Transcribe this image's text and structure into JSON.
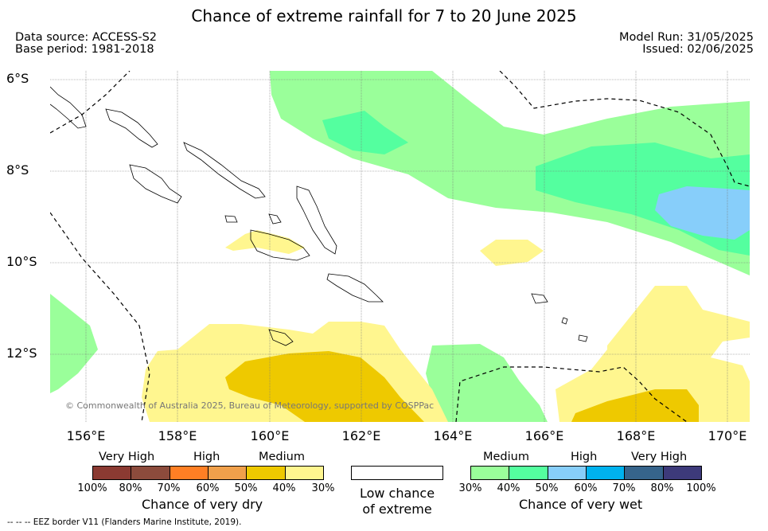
{
  "title": "Chance of extreme rainfall for 7 to 20 June 2025",
  "meta": {
    "data_source": "Data source: ACCESS-S2",
    "base_period": "Base period: 1981-2018",
    "model_run": "Model Run: 31/05/2025",
    "issued": "Issued: 02/06/2025"
  },
  "map": {
    "lat_ticks": [
      "6°S",
      "8°S",
      "10°S",
      "12°S"
    ],
    "lon_ticks": [
      "156°E",
      "158°E",
      "160°E",
      "162°E",
      "164°E",
      "166°E",
      "168°E",
      "170°E"
    ],
    "copyright": "© Commonwealth of Australia 2025, Bureau of Meteorology, supported by COSPPac"
  },
  "legend": {
    "dry": {
      "levels": [
        "Very High",
        "High",
        "Medium"
      ],
      "colors": [
        "#8b3a32",
        "#8c4b3c",
        "#ff7f24",
        "#f0a04b",
        "#eec900",
        "#fff68f"
      ],
      "ticks": [
        "100%",
        "80%",
        "70%",
        "60%",
        "50%",
        "40%",
        "30%"
      ],
      "caption": "Chance of very dry"
    },
    "low": {
      "caption_line1": "Low chance",
      "caption_line2": "of extreme"
    },
    "wet": {
      "levels": [
        "Medium",
        "High",
        "Very High"
      ],
      "colors": [
        "#9aff9a",
        "#54ff9f",
        "#87cefa",
        "#00b2ee",
        "#36648b",
        "#3d3a7a"
      ],
      "ticks": [
        "30%",
        "40%",
        "50%",
        "60%",
        "70%",
        "80%",
        "100%"
      ],
      "caption": "Chance of very wet"
    }
  },
  "eez_note": "--  --  -- EEZ border V11 (Flanders Marine Institute, 2019)."
}
